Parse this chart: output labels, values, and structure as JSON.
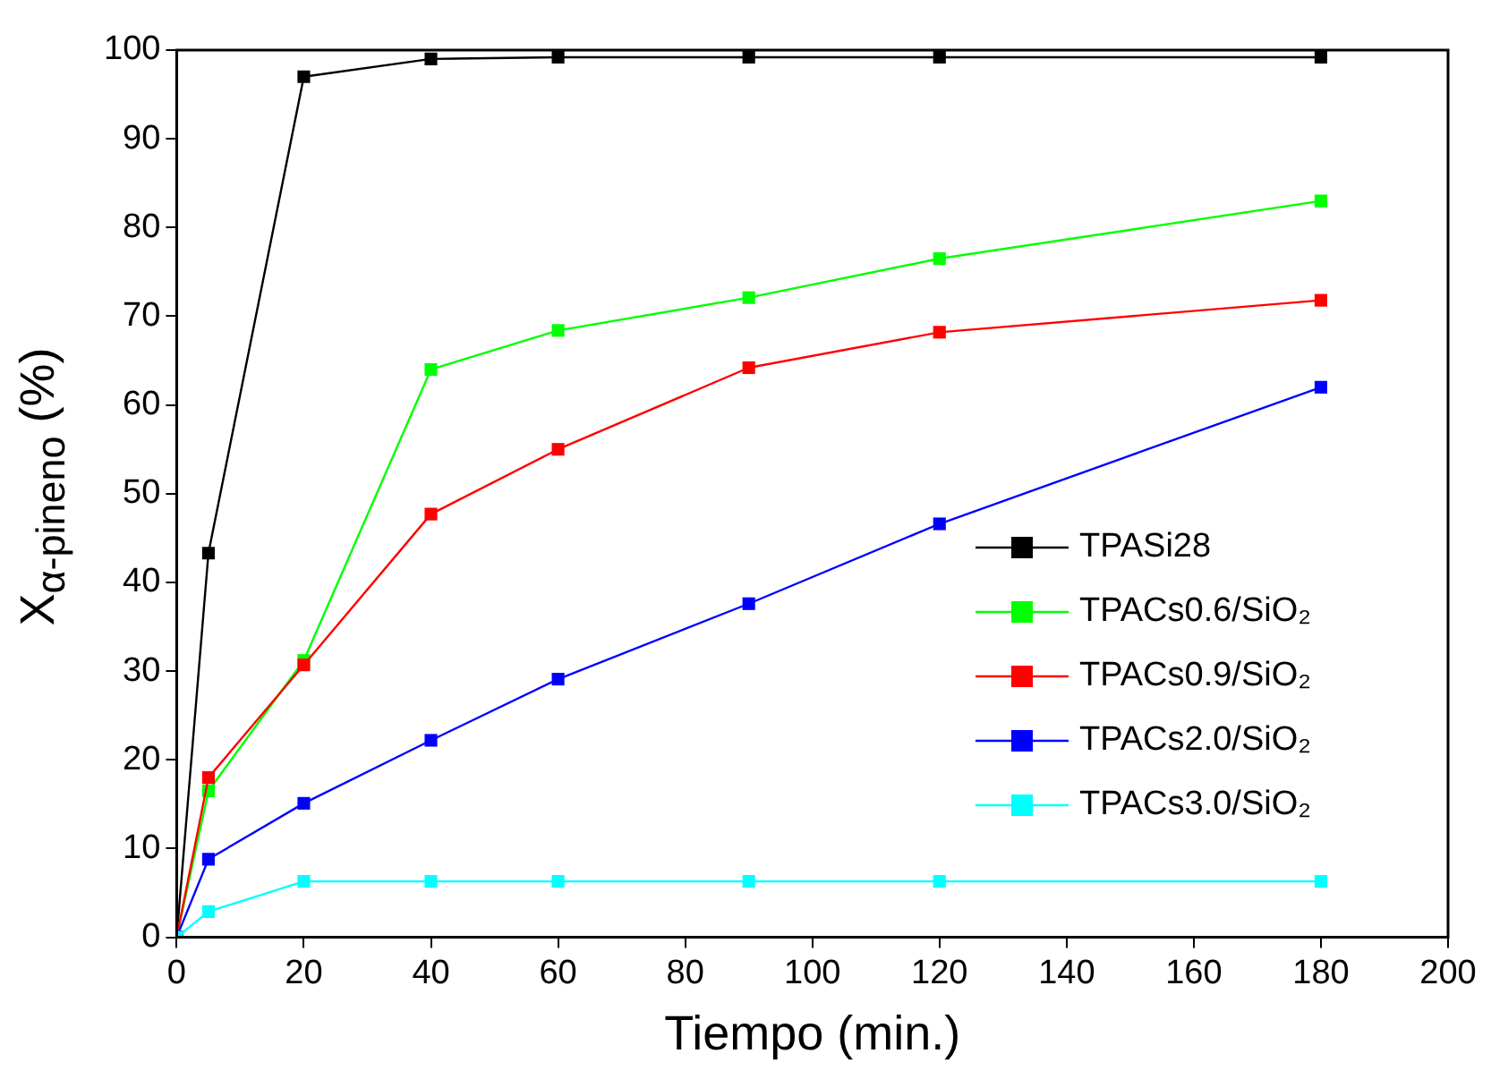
{
  "chart_data": {
    "type": "line",
    "xlabel": "Tiempo (min.)",
    "ylabel": "X$_{α-pineno}$ (%)",
    "x": [
      0,
      5,
      20,
      40,
      60,
      90,
      120,
      180
    ],
    "xlim": [
      0,
      200
    ],
    "xticks": [
      0,
      20,
      40,
      60,
      80,
      100,
      120,
      140,
      160,
      180,
      200
    ],
    "ylim": [
      0,
      100
    ],
    "yticks": [
      0,
      10,
      20,
      30,
      40,
      50,
      60,
      70,
      80,
      90,
      100
    ],
    "grid": false,
    "legend": "right",
    "marker": "square",
    "line_style": "solid",
    "series": [
      {
        "name": "TPASi28",
        "color": "#000000",
        "values": [
          0,
          43.3,
          97,
          99,
          99.2,
          99.2,
          99.2,
          99.2
        ]
      },
      {
        "name": "TPACs0.6/SiO₂",
        "color": "#00ff00",
        "values": [
          0,
          16.5,
          31.2,
          64,
          68.4,
          72.1,
          76.5,
          83
        ]
      },
      {
        "name": "TPACs0.9/SiO₂",
        "color": "#ff0000",
        "values": [
          0,
          18,
          30.7,
          47.7,
          55,
          64.2,
          68.2,
          71.8
        ]
      },
      {
        "name": "TPACs2.0/SiO₂",
        "color": "#0000ff",
        "values": [
          0,
          8.8,
          15.1,
          22.2,
          29.1,
          37.6,
          46.6,
          62
        ]
      },
      {
        "name": "TPACs3.0/SiO₂",
        "color": "#00ffff",
        "values": [
          0,
          2.9,
          6.3,
          6.3,
          6.3,
          6.3,
          6.3,
          6.3
        ]
      }
    ]
  }
}
